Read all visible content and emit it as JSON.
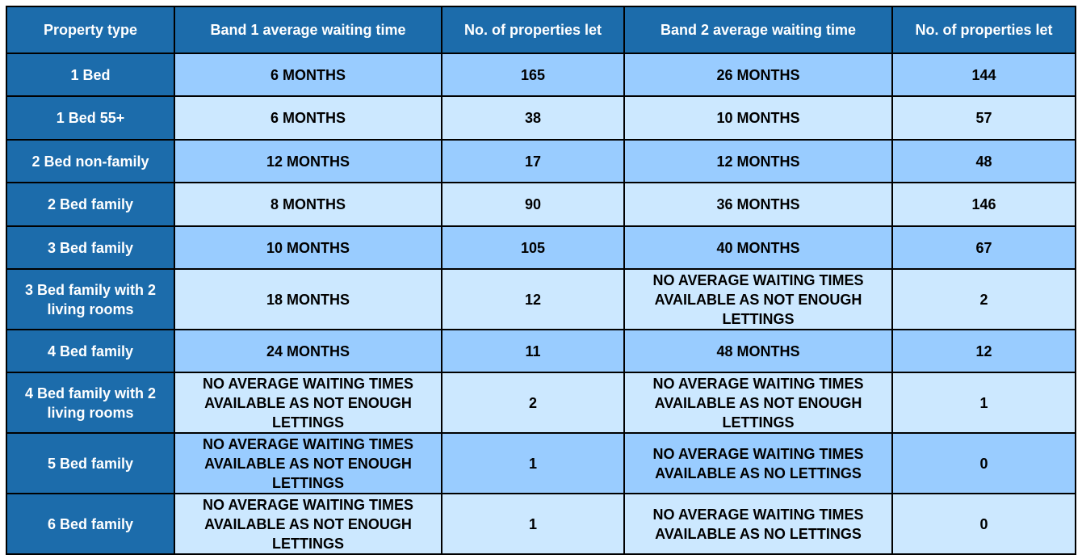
{
  "table": {
    "header": [
      "Property type",
      "Band 1 average waiting time",
      "No. of properties let",
      "Band 2 average waiting time",
      "No. of properties let"
    ],
    "rows": [
      [
        "1 Bed",
        "6 MONTHS",
        165,
        "26 MONTHS",
        144
      ],
      [
        "1 Bed 55+",
        "6 MONTHS",
        38,
        "10 MONTHS",
        57
      ],
      [
        "2 Bed non-family",
        "12 MONTHS",
        17,
        "12 MONTHS",
        48
      ],
      [
        "2 Bed family",
        "8 MONTHS",
        90,
        "36 MONTHS",
        146
      ],
      [
        "3 Bed family",
        "10 MONTHS",
        105,
        "40 MONTHS",
        67
      ],
      [
        "3 Bed family with 2 living rooms",
        "18 MONTHS",
        12,
        "NO AVERAGE WAITING TIMES AVAILABLE AS NOT ENOUGH LETTINGS",
        2
      ],
      [
        "4 Bed family",
        "24 MONTHS",
        11,
        "48 MONTHS",
        12
      ],
      [
        "4 Bed family with 2 living rooms",
        "NO AVERAGE WAITING TIMES AVAILABLE AS NOT ENOUGH LETTINGS",
        2,
        "NO AVERAGE WAITING TIMES AVAILABLE AS NOT ENOUGH LETTINGS",
        1
      ],
      [
        "5 Bed family",
        "NO AVERAGE WAITING TIMES AVAILABLE AS NOT ENOUGH LETTINGS",
        1,
        "NO AVERAGE WAITING TIMES AVAILABLE AS NO LETTINGS",
        0
      ],
      [
        "6 Bed family",
        "NO AVERAGE WAITING TIMES AVAILABLE AS NOT ENOUGH LETTINGS",
        1,
        "NO AVERAGE WAITING TIMES AVAILABLE AS NO LETTINGS",
        0
      ]
    ]
  }
}
